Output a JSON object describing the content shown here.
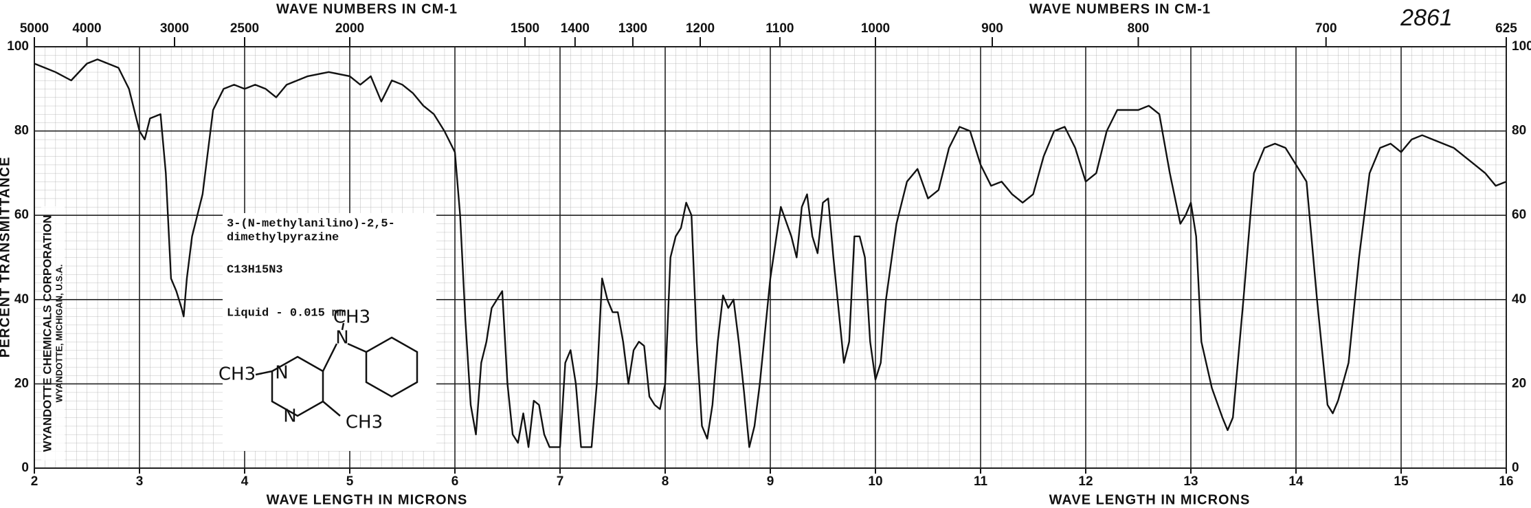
{
  "chart_data": {
    "type": "line",
    "catalog_number": "2861",
    "top_axis_label": "WAVE NUMBERS IN CM-1",
    "x_label": "WAVE LENGTH IN MICRONS",
    "y_label": "PERCENT TRANSMITTANCE",
    "publisher": "WYANDOTTE CHEMICALS CORPORATION",
    "publisher_address": "WYANDOTTE, MICHIGAN, U.S.A.",
    "compound_name_lines": [
      "3-(N-methylanilino)-2,5-",
      "dimethylpyrazine"
    ],
    "formula": "C13H15N3",
    "sample": "Liquid - 0.015 mm",
    "structure_labels": [
      "CH3",
      "N",
      "CH3",
      "N",
      "N",
      "CH3"
    ],
    "xlim": [
      2,
      16
    ],
    "xticks": [
      2,
      3,
      4,
      5,
      6,
      7,
      8,
      9,
      10,
      11,
      12,
      13,
      14,
      15,
      16
    ],
    "x2ticks": [
      5000,
      4000,
      3000,
      2500,
      2000,
      1500,
      1400,
      1300,
      1200,
      1100,
      1000,
      900,
      800,
      700,
      625
    ],
    "ylim": [
      0,
      100
    ],
    "yticks": [
      0,
      20,
      40,
      60,
      80,
      100
    ],
    "grid": true,
    "x": [
      2.0,
      2.1,
      2.2,
      2.35,
      2.5,
      2.6,
      2.7,
      2.8,
      2.9,
      3.0,
      3.05,
      3.1,
      3.2,
      3.25,
      3.3,
      3.35,
      3.4,
      3.42,
      3.45,
      3.5,
      3.6,
      3.7,
      3.8,
      3.9,
      4.0,
      4.1,
      4.2,
      4.3,
      4.4,
      4.6,
      4.8,
      5.0,
      5.1,
      5.2,
      5.3,
      5.4,
      5.5,
      5.6,
      5.7,
      5.8,
      5.9,
      6.0,
      6.05,
      6.1,
      6.15,
      6.2,
      6.25,
      6.3,
      6.35,
      6.4,
      6.45,
      6.5,
      6.55,
      6.6,
      6.65,
      6.7,
      6.75,
      6.8,
      6.85,
      6.9,
      7.0,
      7.05,
      7.1,
      7.15,
      7.2,
      7.3,
      7.35,
      7.4,
      7.45,
      7.5,
      7.55,
      7.6,
      7.65,
      7.7,
      7.75,
      7.8,
      7.85,
      7.9,
      7.95,
      8.0,
      8.05,
      8.1,
      8.15,
      8.2,
      8.25,
      8.3,
      8.35,
      8.4,
      8.45,
      8.5,
      8.55,
      8.6,
      8.65,
      8.7,
      8.75,
      8.8,
      8.85,
      8.9,
      9.0,
      9.1,
      9.2,
      9.25,
      9.3,
      9.35,
      9.4,
      9.45,
      9.5,
      9.55,
      9.6,
      9.7,
      9.75,
      9.8,
      9.85,
      9.9,
      9.95,
      10.0,
      10.05,
      10.1,
      10.2,
      10.3,
      10.4,
      10.5,
      10.6,
      10.7,
      10.8,
      10.9,
      11.0,
      11.1,
      11.2,
      11.3,
      11.4,
      11.5,
      11.6,
      11.7,
      11.8,
      11.9,
      12.0,
      12.1,
      12.2,
      12.3,
      12.5,
      12.6,
      12.7,
      12.8,
      12.9,
      12.95,
      13.0,
      13.05,
      13.1,
      13.2,
      13.3,
      13.35,
      13.4,
      13.5,
      13.6,
      13.7,
      13.8,
      13.9,
      14.0,
      14.1,
      14.2,
      14.3,
      14.35,
      14.4,
      14.5,
      14.6,
      14.7,
      14.8,
      14.9,
      15.0,
      15.1,
      15.2,
      15.3,
      15.5,
      15.7,
      15.8,
      15.9,
      16.0
    ],
    "series": [
      {
        "name": "transmittance",
        "color": "#111111",
        "values": [
          96,
          95,
          94,
          92,
          96,
          97,
          96,
          95,
          90,
          80,
          78,
          83,
          84,
          70,
          45,
          42,
          38,
          36,
          45,
          55,
          65,
          85,
          90,
          91,
          90,
          91,
          90,
          88,
          91,
          93,
          94,
          93,
          91,
          93,
          87,
          92,
          91,
          89,
          86,
          84,
          80,
          75,
          60,
          35,
          15,
          8,
          25,
          30,
          38,
          40,
          42,
          20,
          8,
          6,
          13,
          5,
          16,
          15,
          8,
          5,
          5,
          25,
          28,
          20,
          5,
          5,
          20,
          45,
          40,
          37,
          37,
          30,
          20,
          28,
          30,
          29,
          17,
          15,
          14,
          20,
          50,
          55,
          57,
          63,
          60,
          30,
          10,
          7,
          15,
          30,
          41,
          38,
          40,
          30,
          18,
          5,
          10,
          20,
          45,
          62,
          55,
          50,
          62,
          65,
          55,
          51,
          63,
          64,
          50,
          25,
          30,
          55,
          55,
          50,
          30,
          21,
          25,
          40,
          58,
          68,
          71,
          64,
          66,
          76,
          81,
          80,
          72,
          67,
          68,
          65,
          63,
          65,
          74,
          80,
          81,
          76,
          68,
          70,
          80,
          85,
          85,
          86,
          84,
          70,
          58,
          60,
          63,
          55,
          30,
          19,
          12,
          9,
          12,
          40,
          70,
          76,
          77,
          76,
          72,
          68,
          40,
          15,
          13,
          16,
          25,
          50,
          70,
          76,
          77,
          75,
          78,
          79,
          78,
          76,
          72,
          70,
          67,
          68
        ]
      }
    ]
  }
}
